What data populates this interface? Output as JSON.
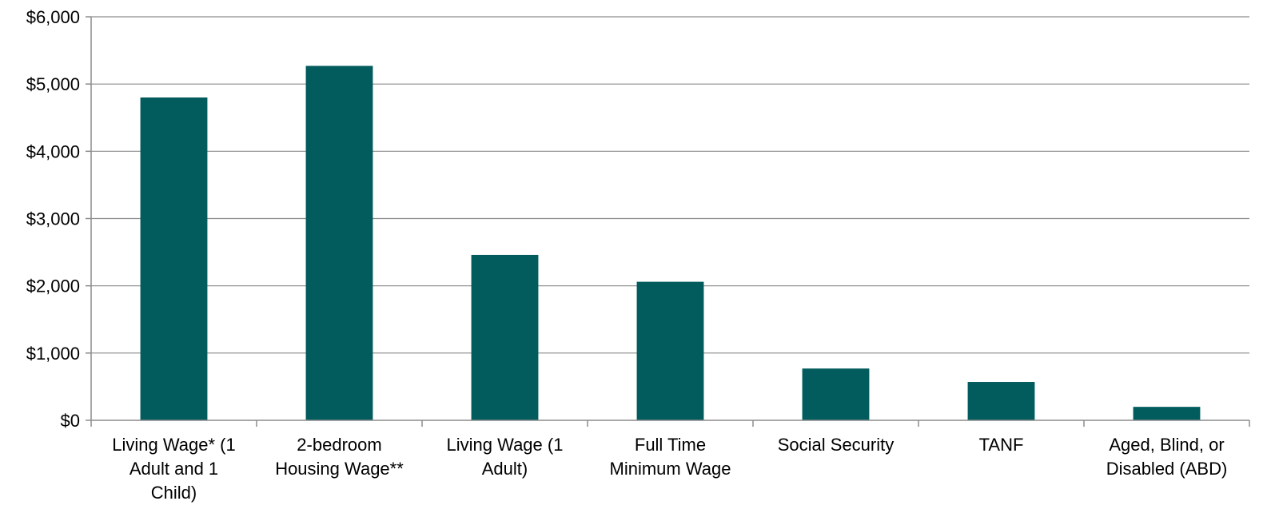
{
  "chart_data": {
    "type": "bar",
    "title": "",
    "xlabel": "",
    "ylabel": "",
    "categories": [
      [
        "Living Wage*  (1",
        "Adult and 1",
        "Child)"
      ],
      [
        "2-bedroom",
        "Housing Wage**"
      ],
      [
        "Living Wage (1",
        "Adult)"
      ],
      [
        "Full Time",
        "Minimum Wage"
      ],
      [
        "Social Security"
      ],
      [
        "TANF"
      ],
      [
        "Aged, Blind, or",
        "Disabled (ABD)"
      ]
    ],
    "values": [
      4800,
      5270,
      2460,
      2060,
      770,
      570,
      200
    ],
    "ylim": [
      0,
      6000
    ],
    "yticks": [
      0,
      1000,
      2000,
      3000,
      4000,
      5000,
      6000
    ],
    "ytick_labels": [
      "$0",
      "$1,000",
      "$2,000",
      "$3,000",
      "$4,000",
      "$5,000",
      "$6,000"
    ],
    "bar_color": "#025b5c",
    "grid": true,
    "legend": "none"
  }
}
